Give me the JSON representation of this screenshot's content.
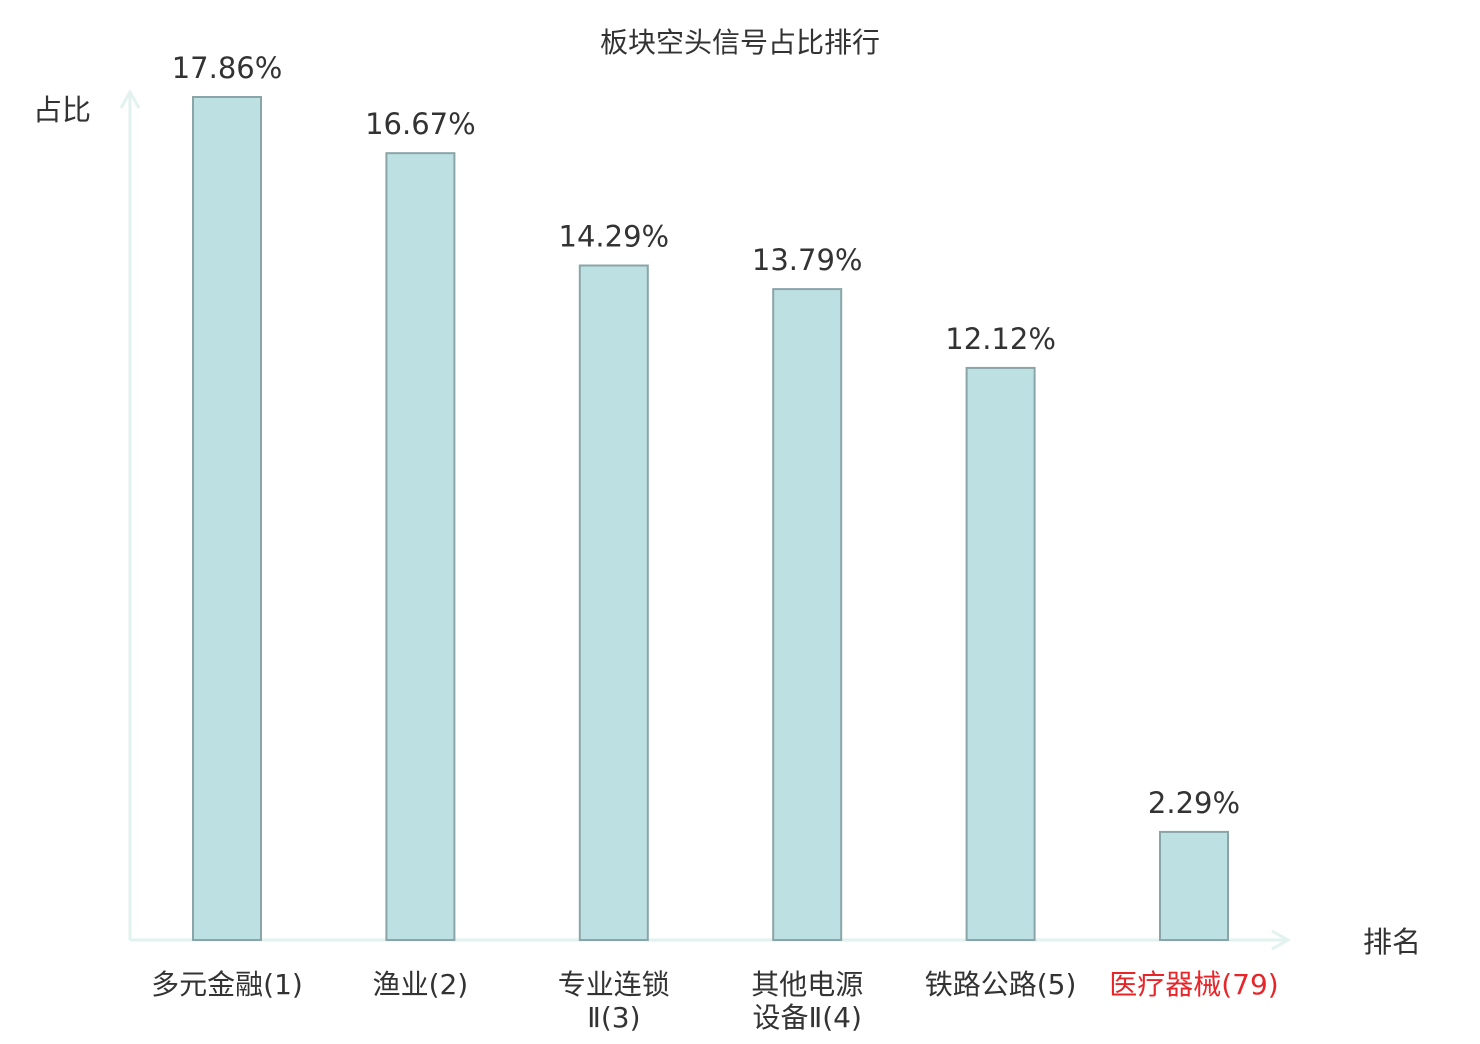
{
  "chart_data": {
    "type": "bar",
    "title": "板块空头信号占比排行",
    "ylabel": "占比",
    "xlabel": "排名",
    "ylim": [
      0,
      18
    ],
    "grid": false,
    "categories": [
      {
        "lines": [
          "多元金融(1)"
        ],
        "highlight": false
      },
      {
        "lines": [
          "渔业(2)"
        ],
        "highlight": false
      },
      {
        "lines": [
          "专业连锁",
          "Ⅱ(3)"
        ],
        "highlight": false
      },
      {
        "lines": [
          "其他电源",
          "设备Ⅱ(4)"
        ],
        "highlight": false
      },
      {
        "lines": [
          "铁路公路(5)"
        ],
        "highlight": false
      },
      {
        "lines": [
          "医疗器械(79)"
        ],
        "highlight": true
      }
    ],
    "values": [
      17.86,
      16.67,
      14.29,
      13.79,
      12.12,
      2.29
    ],
    "value_labels": [
      "17.86%",
      "16.67%",
      "14.29%",
      "13.79%",
      "12.12%",
      "2.29%"
    ],
    "colors": {
      "bar_fill": "#bde0e3",
      "bar_stroke": "#8aa5a8",
      "axis": "#e2f2ef",
      "text": "#333333",
      "highlight_text": "#e8262a"
    }
  }
}
